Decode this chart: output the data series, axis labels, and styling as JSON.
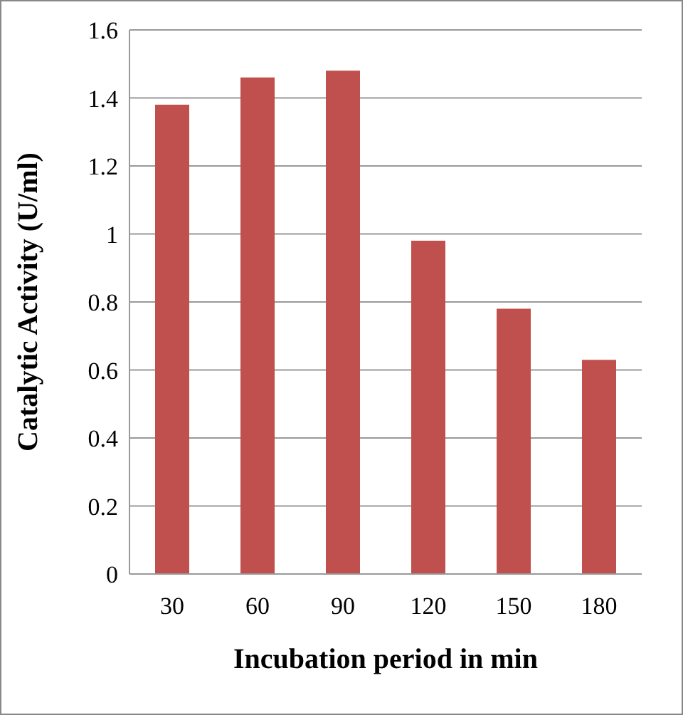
{
  "chart_data": {
    "type": "bar",
    "xlabel": "Incubation period in min",
    "ylabel": "Catalytic Activity (U/ml)",
    "categories": [
      "30",
      "60",
      "90",
      "120",
      "150",
      "180"
    ],
    "values": [
      1.38,
      1.46,
      1.48,
      0.98,
      0.78,
      0.63
    ],
    "color": "#c0504d",
    "ylim": [
      0,
      1.6
    ],
    "yticks": [
      0,
      0.2,
      0.4,
      0.6,
      0.8,
      1,
      1.2,
      1.4,
      1.6
    ],
    "grid": "y"
  }
}
